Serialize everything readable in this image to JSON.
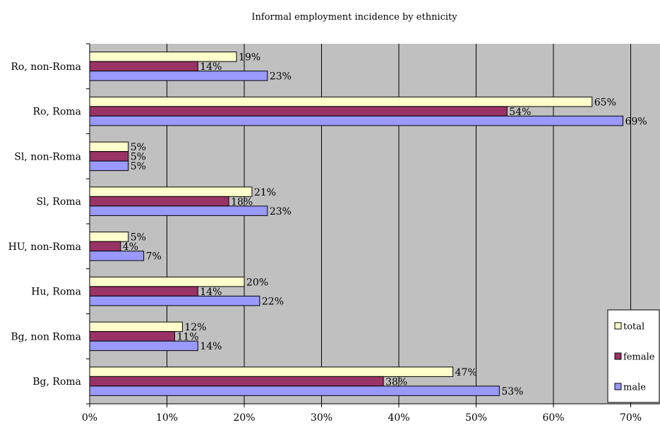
{
  "chart_data": {
    "type": "bar",
    "orientation": "horizontal",
    "title": "Informal employment incidence by ethnicity",
    "categories": [
      "Ro, non-Roma",
      "Ro, Roma",
      "Sl, non-Roma",
      "Sl, Roma",
      "HU, non-Roma",
      "Hu, Roma",
      "Bg, non Roma",
      "Bg, Roma"
    ],
    "series": [
      {
        "name": "total",
        "color": "#FFFFCC",
        "values": [
          19,
          65,
          5,
          21,
          5,
          20,
          12,
          47
        ],
        "labels": [
          "19%",
          "65%",
          "5%",
          "21%",
          "5%",
          "20%",
          "12%",
          "47%"
        ]
      },
      {
        "name": "female",
        "color": "#993366",
        "values": [
          14,
          54,
          5,
          18,
          4,
          14,
          11,
          38
        ],
        "labels": [
          "14%",
          "54%",
          "5%",
          "18%",
          "4%",
          "14%",
          "11%",
          "38%"
        ]
      },
      {
        "name": "male",
        "color": "#9999FF",
        "values": [
          23,
          69,
          5,
          23,
          7,
          22,
          14,
          53
        ],
        "labels": [
          "23%",
          "69%",
          "5%",
          "23%",
          "7%",
          "22%",
          "14%",
          "53%"
        ]
      }
    ],
    "xlim": [
      0,
      70
    ],
    "x_ticks": [
      "0%",
      "10%",
      "20%",
      "30%",
      "40%",
      "50%",
      "60%",
      "70%"
    ],
    "grid": "vertical",
    "plot_background": "#C0C0C0",
    "legend_position": "bottom-right"
  }
}
